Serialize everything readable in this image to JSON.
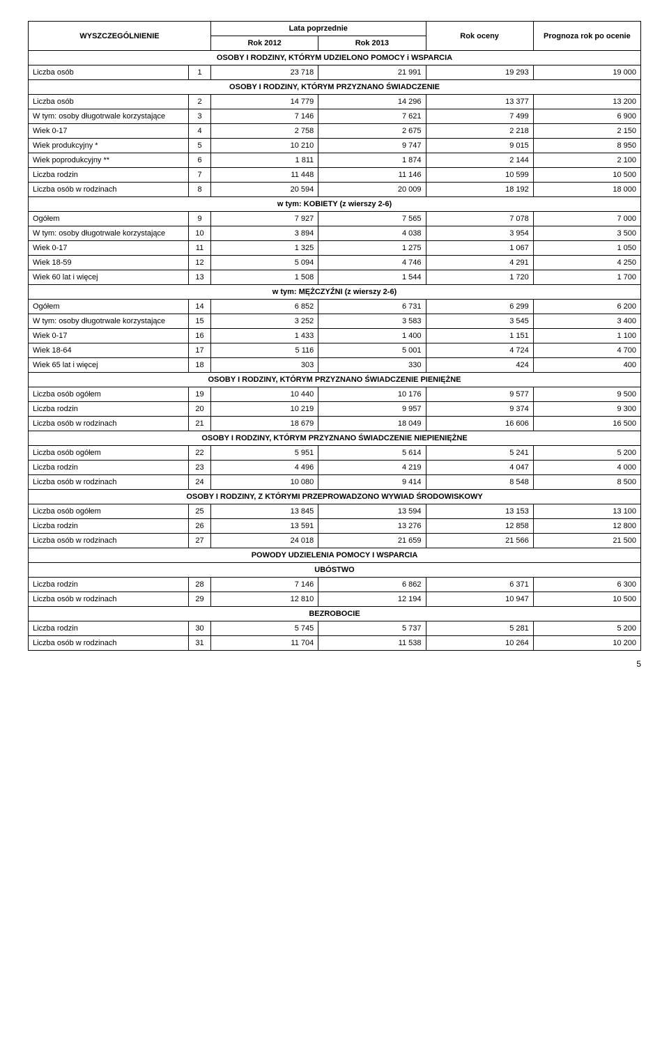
{
  "header": {
    "col1": "WYSZCZEGÓLNIENIE",
    "lata_poprzednie": "Lata poprzednie",
    "rok_2012": "Rok 2012",
    "rok_2013": "Rok 2013",
    "rok_oceny": "Rok oceny",
    "prognoza": "Prognoza rok po ocenie"
  },
  "sections": [
    "OSOBY I RODZINY, KTÓRYM UDZIELONO POMOCY i WSPARCIA",
    "OSOBY I RODZINY, KTÓRYM PRZYZNANO ŚWIADCZENIE",
    "w tym: KOBIETY (z wierszy 2-6)",
    "w tym: MĘŻCZYŹNI (z wierszy 2-6)",
    "OSOBY I RODZINY, KTÓRYM PRZYZNANO ŚWIADCZENIE PIENIĘŻNE",
    "OSOBY I RODZINY, KTÓRYM PRZYZNANO ŚWIADCZENIE NIEPIENIĘŻNE",
    "OSOBY I RODZINY, Z KTÓRYMI PRZEPROWADZONO WYWIAD ŚRODOWISKOWY",
    "POWODY UDZIELENIA POMOCY I WSPARCIA",
    "UBÓSTWO",
    "BEZROBOCIE"
  ],
  "rows": [
    {
      "label": "Liczba osób",
      "idx": "1",
      "c": [
        "23 718",
        "21 991",
        "19 293",
        "19 000"
      ]
    },
    {
      "label": "Liczba osób",
      "idx": "2",
      "c": [
        "14 779",
        "14 296",
        "13 377",
        "13 200"
      ]
    },
    {
      "label": "W tym: osoby długotrwale korzystające",
      "idx": "3",
      "c": [
        "7 146",
        "7 621",
        "7 499",
        "6 900"
      ]
    },
    {
      "label": "Wiek 0-17",
      "idx": "4",
      "c": [
        "2 758",
        "2 675",
        "2 218",
        "2 150"
      ]
    },
    {
      "label": "Wiek produkcyjny *",
      "idx": "5",
      "c": [
        "10 210",
        "9 747",
        "9 015",
        "8 950"
      ]
    },
    {
      "label": "Wiek poprodukcyjny **",
      "idx": "6",
      "c": [
        "1 811",
        "1 874",
        "2 144",
        "2 100"
      ]
    },
    {
      "label": "Liczba rodzin",
      "idx": "7",
      "c": [
        "11 448",
        "11 146",
        "10 599",
        "10 500"
      ]
    },
    {
      "label": "Liczba osób w rodzinach",
      "idx": "8",
      "c": [
        "20 594",
        "20 009",
        "18 192",
        "18 000"
      ]
    },
    {
      "label": "Ogółem",
      "idx": "9",
      "c": [
        "7 927",
        "7 565",
        "7 078",
        "7 000"
      ]
    },
    {
      "label": "W tym: osoby długotrwale korzystające",
      "idx": "10",
      "c": [
        "3 894",
        "4 038",
        "3 954",
        "3 500"
      ]
    },
    {
      "label": "Wiek 0-17",
      "idx": "11",
      "c": [
        "1 325",
        "1 275",
        "1 067",
        "1 050"
      ]
    },
    {
      "label": "Wiek 18-59",
      "idx": "12",
      "c": [
        "5 094",
        "4 746",
        "4 291",
        "4 250"
      ]
    },
    {
      "label": "Wiek 60 lat i więcej",
      "idx": "13",
      "c": [
        "1 508",
        "1 544",
        "1 720",
        "1 700"
      ]
    },
    {
      "label": "Ogółem",
      "idx": "14",
      "c": [
        "6 852",
        "6 731",
        "6 299",
        "6 200"
      ]
    },
    {
      "label": "W tym: osoby długotrwale korzystające",
      "idx": "15",
      "c": [
        "3 252",
        "3 583",
        "3 545",
        "3 400"
      ]
    },
    {
      "label": "Wiek 0-17",
      "idx": "16",
      "c": [
        "1 433",
        "1 400",
        "1 151",
        "1 100"
      ]
    },
    {
      "label": "Wiek 18-64",
      "idx": "17",
      "c": [
        "5 116",
        "5 001",
        "4 724",
        "4 700"
      ]
    },
    {
      "label": "Wiek 65 lat i więcej",
      "idx": "18",
      "c": [
        "303",
        "330",
        "424",
        "400"
      ]
    },
    {
      "label": "Liczba osób ogółem",
      "idx": "19",
      "c": [
        "10 440",
        "10 176",
        "9 577",
        "9 500"
      ]
    },
    {
      "label": "Liczba rodzin",
      "idx": "20",
      "c": [
        "10 219",
        "9 957",
        "9 374",
        "9 300"
      ]
    },
    {
      "label": "Liczba osób w rodzinach",
      "idx": "21",
      "c": [
        "18 679",
        "18 049",
        "16 606",
        "16 500"
      ]
    },
    {
      "label": "Liczba osób ogółem",
      "idx": "22",
      "c": [
        "5 951",
        "5 614",
        "5 241",
        "5 200"
      ]
    },
    {
      "label": "Liczba rodzin",
      "idx": "23",
      "c": [
        "4 496",
        "4 219",
        "4 047",
        "4 000"
      ]
    },
    {
      "label": "Liczba osób w rodzinach",
      "idx": "24",
      "c": [
        "10 080",
        "9 414",
        "8 548",
        "8 500"
      ]
    },
    {
      "label": "Liczba osób ogółem",
      "idx": "25",
      "c": [
        "13 845",
        "13 594",
        "13 153",
        "13 100"
      ]
    },
    {
      "label": "Liczba rodzin",
      "idx": "26",
      "c": [
        "13 591",
        "13 276",
        "12 858",
        "12 800"
      ]
    },
    {
      "label": "Liczba osób w rodzinach",
      "idx": "27",
      "c": [
        "24 018",
        "21 659",
        "21 566",
        "21 500"
      ]
    },
    {
      "label": "Liczba rodzin",
      "idx": "28",
      "c": [
        "7 146",
        "6 862",
        "6 371",
        "6 300"
      ]
    },
    {
      "label": "Liczba osób w rodzinach",
      "idx": "29",
      "c": [
        "12 810",
        "12 194",
        "10 947",
        "10 500"
      ]
    },
    {
      "label": "Liczba rodzin",
      "idx": "30",
      "c": [
        "5 745",
        "5 737",
        "5 281",
        "5 200"
      ]
    },
    {
      "label": "Liczba osób w rodzinach",
      "idx": "31",
      "c": [
        "11 704",
        "11 538",
        "10 264",
        "10 200"
      ]
    }
  ],
  "page_number": "5"
}
